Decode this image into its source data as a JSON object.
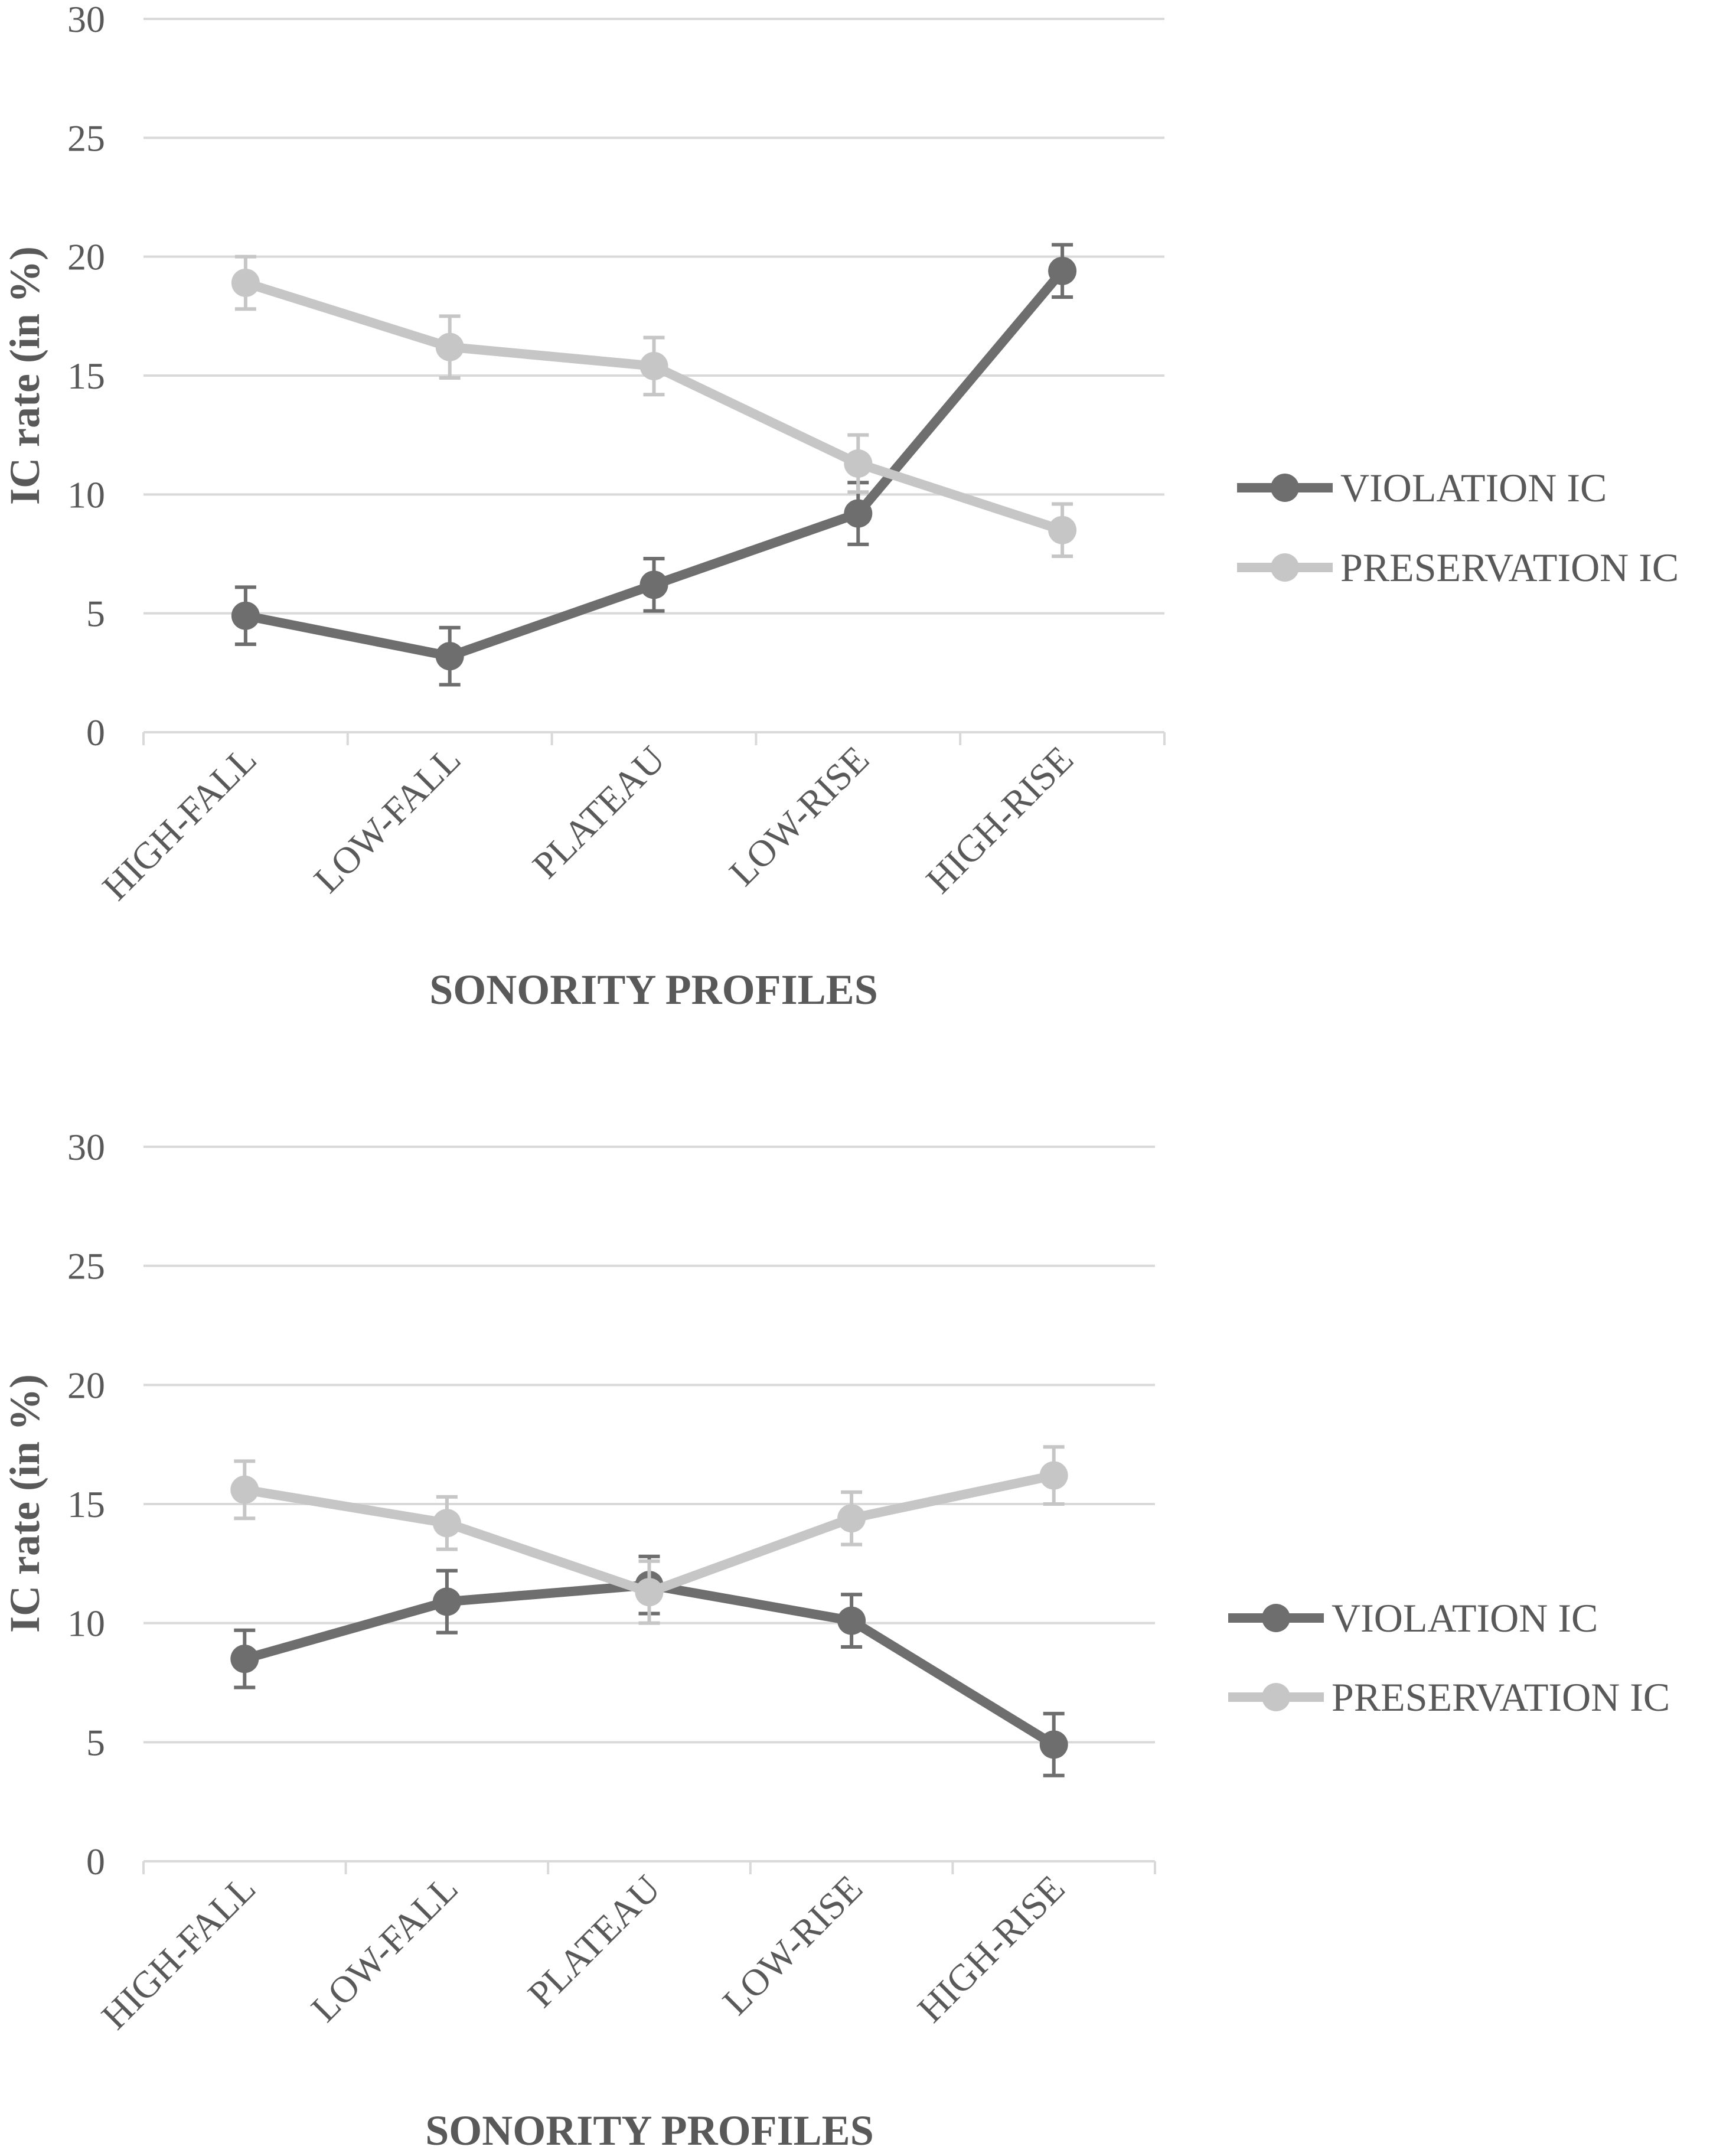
{
  "chart_data": [
    {
      "type": "line",
      "categories": [
        "HIGH-FALL",
        "LOW-FALL",
        "PLATEAU",
        "LOW-RISE",
        "HIGH-RISE"
      ],
      "ylim": [
        0,
        30
      ],
      "yticks": [
        0,
        5,
        10,
        15,
        20,
        25,
        30
      ],
      "ylabel": "IC rate (in %)",
      "xlabel": "SONORITY PROFILES",
      "grid": true,
      "legend_position": "right",
      "series": [
        {
          "name": "VIOLATION IC",
          "color": "#6e6e6e",
          "values": [
            4.9,
            3.2,
            6.2,
            9.2,
            19.4
          ],
          "errors": [
            1.2,
            1.2,
            1.1,
            1.3,
            1.1
          ]
        },
        {
          "name": "PRESERVATION IC",
          "color": "#c6c6c6",
          "values": [
            18.9,
            16.2,
            15.4,
            11.3,
            8.5
          ],
          "errors": [
            1.1,
            1.3,
            1.2,
            1.2,
            1.1
          ]
        }
      ]
    },
    {
      "type": "line",
      "categories": [
        "HIGH-FALL",
        "LOW-FALL",
        "PLATEAU",
        "LOW-RISE",
        "HIGH-RISE"
      ],
      "ylim": [
        0,
        30
      ],
      "yticks": [
        0,
        5,
        10,
        15,
        20,
        25,
        30
      ],
      "ylabel": "IC rate (in %)",
      "xlabel": "SONORITY PROFILES",
      "grid": true,
      "legend_position": "right",
      "series": [
        {
          "name": "VIOLATION IC",
          "color": "#6e6e6e",
          "values": [
            8.5,
            10.9,
            11.6,
            10.1,
            4.9
          ],
          "errors": [
            1.2,
            1.3,
            1.2,
            1.1,
            1.3
          ]
        },
        {
          "name": "PRESERVATION IC",
          "color": "#c6c6c6",
          "values": [
            15.6,
            14.2,
            11.3,
            14.4,
            16.2
          ],
          "errors": [
            1.2,
            1.1,
            1.3,
            1.1,
            1.2
          ]
        }
      ]
    }
  ]
}
